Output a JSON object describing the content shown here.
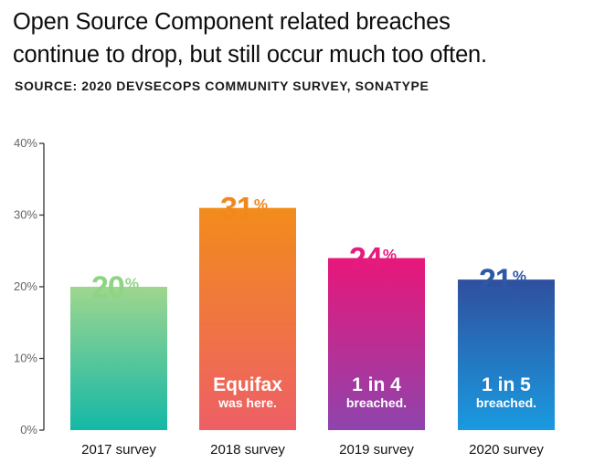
{
  "chart_data": {
    "type": "bar",
    "title_lines": [
      "Open Source Component related breaches",
      "continue to drop, but still occur much too often."
    ],
    "subtitle": "SOURCE: 2020 DEVSECOPS COMMUNITY SURVEY, SONATYPE",
    "categories": [
      "2017 survey",
      "2018 survey",
      "2019 survey",
      "2020 survey"
    ],
    "values": [
      20,
      31,
      24,
      21
    ],
    "value_labels": [
      "20",
      "31",
      "24",
      "21"
    ],
    "percent_symbol": "%",
    "ylim": [
      0,
      40
    ],
    "yticks": [
      0,
      10,
      20,
      30,
      40
    ],
    "ytick_labels": [
      "0%",
      "10%",
      "20%",
      "30%",
      "40%"
    ],
    "notes": [
      {
        "main": "",
        "sub": ""
      },
      {
        "main": "Equifax",
        "sub": "was here."
      },
      {
        "main": "1 in 4",
        "sub": "breached."
      },
      {
        "main": "1 in 5",
        "sub": "breached."
      }
    ],
    "colors": [
      {
        "top": "#9fd68f",
        "bottom": "#14b8a6",
        "label": "#8fd485"
      },
      {
        "top": "#f28c1c",
        "bottom": "#ee5f66",
        "label": "#f2871e"
      },
      {
        "top": "#e8177a",
        "bottom": "#8e44ad",
        "label": "#e51c7e"
      },
      {
        "top": "#2f4f9e",
        "bottom": "#1a9ae0",
        "label": "#2d58a6"
      }
    ]
  }
}
